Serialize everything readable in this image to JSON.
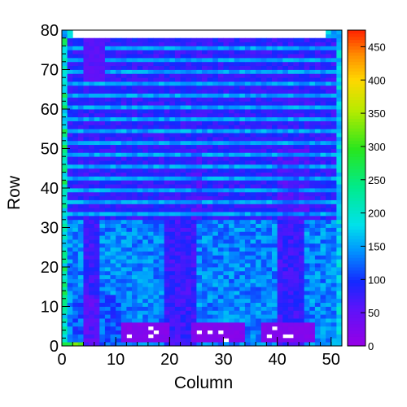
{
  "chart_data": {
    "type": "heatmap",
    "title": "",
    "xlabel": "Column",
    "ylabel": "Row",
    "xlim": [
      0,
      52
    ],
    "ylim": [
      0,
      80
    ],
    "x_ticks": [
      "0",
      "10",
      "20",
      "30",
      "40",
      "50"
    ],
    "y_ticks": [
      "0",
      "10",
      "20",
      "30",
      "40",
      "50",
      "60",
      "70",
      "80"
    ],
    "zlim": [
      0,
      475
    ],
    "colorbar_ticks": [
      "0",
      "50",
      "100",
      "150",
      "200",
      "250",
      "300",
      "350",
      "400",
      "450"
    ],
    "ncols": 52,
    "nrows": 80,
    "regions": {
      "empty_top_rows": [
        78,
        79
      ],
      "upper_base_value": 80,
      "upper_bright_row_value": 150,
      "lower_half_upper_row": 32,
      "lower_base_value": 135,
      "lower_dark_column_bands": [
        [
          4,
          6
        ],
        [
          19,
          24
        ],
        [
          40,
          44
        ]
      ],
      "dark_band_value": 75,
      "purple_blocks": [
        {
          "cols": [
            11,
            19
          ],
          "rows": [
            1,
            5
          ],
          "value": 10
        },
        {
          "cols": [
            24,
            33
          ],
          "rows": [
            1,
            5
          ],
          "value": 10
        },
        {
          "cols": [
            37,
            46
          ],
          "rows": [
            1,
            5
          ],
          "value": 10
        }
      ],
      "empty_cells_in_blocks": [
        [
          12,
          2
        ],
        [
          16,
          2
        ],
        [
          17,
          3
        ],
        [
          16,
          4
        ],
        [
          25,
          3
        ],
        [
          27,
          3
        ],
        [
          29,
          3
        ],
        [
          30,
          1
        ],
        [
          38,
          2
        ],
        [
          39,
          4
        ],
        [
          41,
          2
        ],
        [
          42,
          2
        ]
      ]
    }
  }
}
